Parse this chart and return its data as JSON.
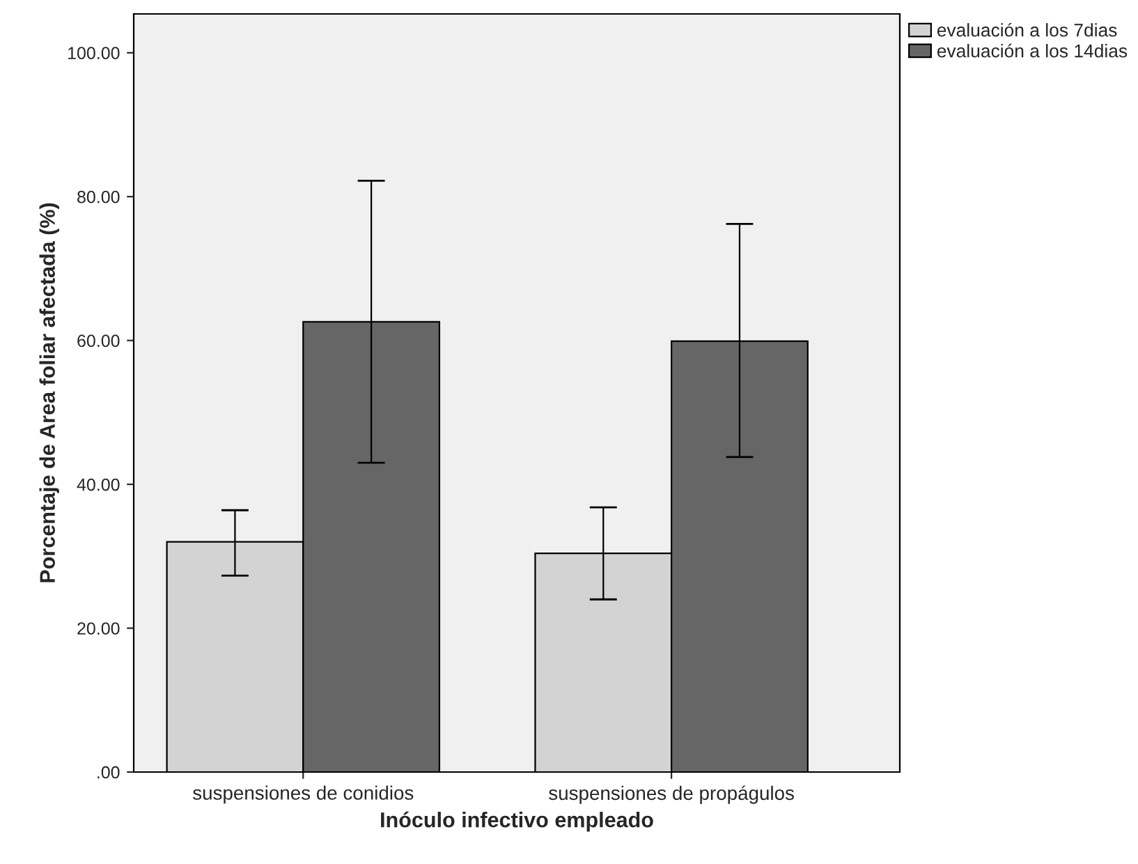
{
  "chart_data": {
    "type": "bar",
    "xlabel": "Inóculo infectivo empleado",
    "ylabel": "Porcentaje de Area foliar afectada (%)",
    "categories": [
      "suspensiones de conidios",
      "suspensiones de propágulos"
    ],
    "series": [
      {
        "name": "evaluación a los 7dias",
        "color": "#d3d3d3",
        "values": [
          32.0,
          30.4
        ],
        "errors": [
          [
            27.3,
            36.4
          ],
          [
            24.0,
            36.8
          ]
        ]
      },
      {
        "name": "evaluación a los 14dias",
        "color": "#666666",
        "values": [
          62.6,
          59.9
        ],
        "errors": [
          [
            43.0,
            82.2
          ],
          [
            43.8,
            76.2
          ]
        ]
      }
    ],
    "ylim": [
      0,
      105.4
    ],
    "yticks": [
      {
        "value": 0,
        "label": ".00"
      },
      {
        "value": 20,
        "label": "20.00"
      },
      {
        "value": 40,
        "label": "40.00"
      },
      {
        "value": 60,
        "label": "60.00"
      },
      {
        "value": 80,
        "label": "80.00"
      },
      {
        "value": 100,
        "label": "100.00"
      }
    ],
    "grid": false,
    "legend": "top right"
  }
}
